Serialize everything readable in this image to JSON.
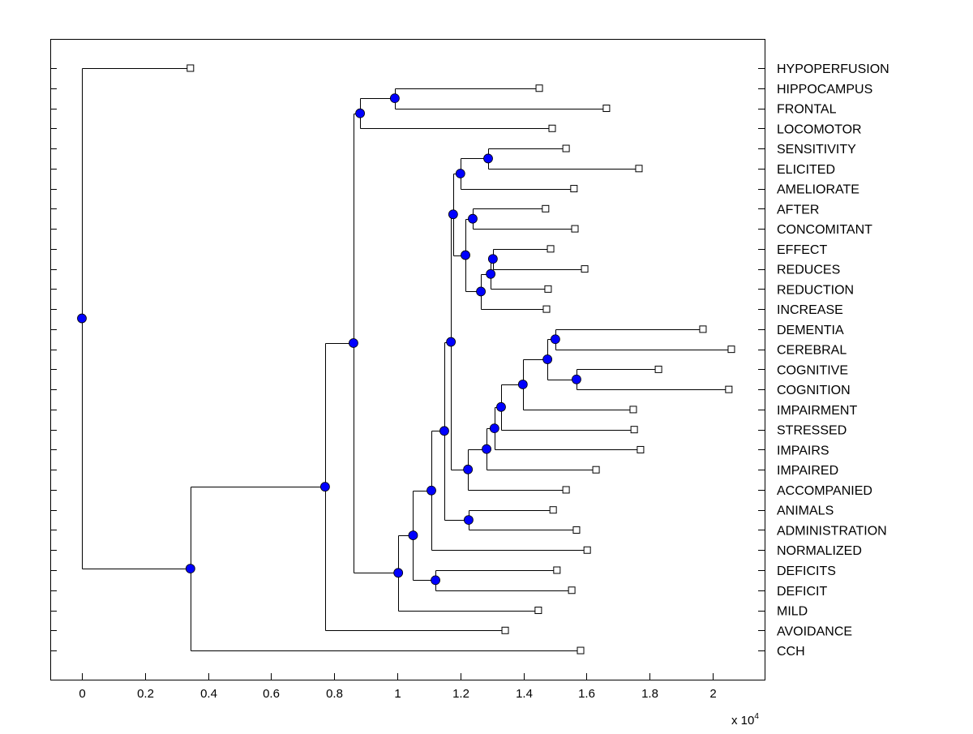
{
  "chart_data": {
    "type": "dendrogram",
    "title": "",
    "xlabel": "",
    "ylabel": "",
    "x_multiplier_label": "x 10",
    "x_multiplier_exponent": "4",
    "xlim": [
      -0.1,
      2.16
    ],
    "xticks": [
      "0",
      "0.2",
      "0.4",
      "0.6",
      "0.8",
      "1",
      "1.2",
      "1.4",
      "1.6",
      "1.8",
      "2"
    ],
    "grid": false,
    "colors": {
      "internal_node": "#0000ff",
      "leaf_node": "#ffffff",
      "line": "#000000"
    },
    "tree": {
      "x": 0,
      "children": [
        {
          "label": "HYPOPERFUSION",
          "x": 0.344
        },
        {
          "x": 0.344,
          "children": [
            {
              "x": 0.771,
              "children": [
                {
                  "x": 0.861,
                  "children": [
                    {
                      "x": 0.882,
                      "children": [
                        {
                          "x": 0.992,
                          "children": [
                            {
                              "label": "HIPPOCAMPUS",
                              "x": 1.45
                            },
                            {
                              "label": "FRONTAL",
                              "x": 1.663
                            }
                          ]
                        },
                        {
                          "label": "LOCOMOTOR",
                          "x": 1.491
                        }
                      ]
                    },
                    {
                      "x": 1.003,
                      "children": [
                        {
                          "x": 1.05,
                          "children": [
                            {
                              "x": 1.108,
                              "children": [
                                {
                                  "x": 1.149,
                                  "children": [
                                    {
                                      "x": 1.17,
                                      "children": [
                                        {
                                          "x": 1.177,
                                          "children": [
                                            {
                                              "x": 1.2,
                                              "children": [
                                                {
                                                  "x": 1.288,
                                                  "children": [
                                                    {
                                                      "label": "SENSITIVITY",
                                                      "x": 1.535
                                                    },
                                                    {
                                                      "label": "ELICITED",
                                                      "x": 1.766
                                                    }
                                                  ]
                                                },
                                                {
                                                  "label": "AMELIORATE",
                                                  "x": 1.56
                                                }
                                              ]
                                            },
                                            {
                                              "x": 1.216,
                                              "children": [
                                                {
                                                  "x": 1.239,
                                                  "children": [
                                                    {
                                                      "label": "AFTER",
                                                      "x": 1.47
                                                    },
                                                    {
                                                      "label": "CONCOMITANT",
                                                      "x": 1.563
                                                    }
                                                  ]
                                                },
                                                {
                                                  "x": 1.265,
                                                  "children": [
                                                    {
                                                      "x": 1.296,
                                                      "children": [
                                                        {
                                                          "x": 1.303,
                                                          "children": [
                                                            {
                                                              "label": "EFFECT",
                                                              "x": 1.486
                                                            },
                                                            {
                                                              "label": "REDUCES",
                                                              "x": 1.594
                                                            }
                                                          ]
                                                        },
                                                        {
                                                          "label": "REDUCTION",
                                                          "x": 1.478
                                                        }
                                                      ]
                                                    },
                                                    {
                                                      "label": "INCREASE",
                                                      "x": 1.473
                                                    }
                                                  ]
                                                }
                                              ]
                                            }
                                          ]
                                        },
                                        {
                                          "x": 1.224,
                                          "children": [
                                            {
                                              "x": 1.283,
                                              "children": [
                                                {
                                                  "x": 1.308,
                                                  "children": [
                                                    {
                                                      "x": 1.329,
                                                      "children": [
                                                        {
                                                          "x": 1.398,
                                                          "children": [
                                                            {
                                                              "x": 1.476,
                                                              "children": [
                                                                {
                                                                  "x": 1.501,
                                                                  "children": [
                                                                    {
                                                                      "label": "DEMENTIA",
                                                                      "x": 1.969
                                                                    },
                                                                    {
                                                                      "label": "CEREBRAL",
                                                                      "x": 2.059
                                                                    }
                                                                  ]
                                                                },
                                                                {
                                                                  "x": 1.568,
                                                                  "children": [
                                                                    {
                                                                      "label": "COGNITIVE",
                                                                      "x": 1.828
                                                                    },
                                                                    {
                                                                      "label": "COGNITION",
                                                                      "x": 2.051
                                                                    }
                                                                  ]
                                                                }
                                                              ]
                                                            },
                                                            {
                                                              "label": "IMPAIRMENT",
                                                              "x": 1.748
                                                            }
                                                          ]
                                                        },
                                                        {
                                                          "label": "STRESSED",
                                                          "x": 1.751
                                                        }
                                                      ]
                                                    },
                                                    {
                                                      "label": "IMPAIRS",
                                                      "x": 1.771
                                                    }
                                                  ]
                                                },
                                                {
                                                  "label": "IMPAIRED",
                                                  "x": 1.63
                                                }
                                              ]
                                            },
                                            {
                                              "label": "ACCOMPANIED",
                                              "x": 1.535
                                            }
                                          ]
                                        }
                                      ]
                                    },
                                    {
                                      "x": 1.226,
                                      "children": [
                                        {
                                          "label": "ANIMALS",
                                          "x": 1.494
                                        },
                                        {
                                          "label": "ADMINISTRATION",
                                          "x": 1.568
                                        }
                                      ]
                                    }
                                  ]
                                },
                                {
                                  "label": "NORMALIZED",
                                  "x": 1.602
                                }
                              ]
                            },
                            {
                              "x": 1.121,
                              "children": [
                                {
                                  "label": "DEFICITS",
                                  "x": 1.506
                                },
                                {
                                  "label": "DEFICIT",
                                  "x": 1.553
                                }
                              ]
                            }
                          ]
                        },
                        {
                          "label": "MILD",
                          "x": 1.447
                        }
                      ]
                    }
                  ]
                },
                {
                  "label": "AVOIDANCE",
                  "x": 1.342
                }
              ]
            },
            {
              "label": "CCH",
              "x": 1.581
            }
          ]
        }
      ]
    }
  }
}
